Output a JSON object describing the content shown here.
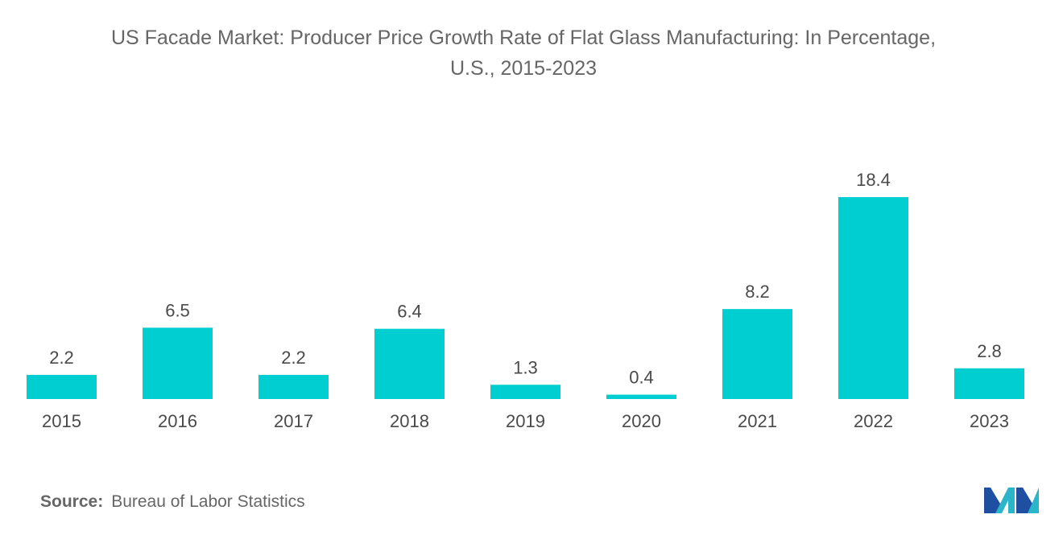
{
  "chart_data": {
    "type": "bar",
    "title_line1": "US Facade Market: Producer Price Growth Rate of Flat Glass Manufacturing: In Percentage,",
    "title_line2": "U.S., 2015-2023",
    "categories": [
      "2015",
      "2016",
      "2017",
      "2018",
      "2019",
      "2020",
      "2021",
      "2022",
      "2023"
    ],
    "values": [
      2.2,
      6.5,
      2.2,
      6.4,
      1.3,
      0.4,
      8.2,
      18.4,
      2.8
    ],
    "value_labels": [
      "2.2",
      "6.5",
      "2.2",
      "6.4",
      "1.3",
      "0.4",
      "8.2",
      "18.4",
      "2.8"
    ],
    "xlabel": "",
    "ylabel": "",
    "ylim": [
      0,
      18.4
    ],
    "grid": false,
    "bar_color": "#00ced1"
  },
  "source": {
    "label": "Source:",
    "text": "Bureau of Labor Statistics"
  },
  "logo": {
    "icon": "mordor-intelligence-logo",
    "colors": [
      "#1e4fa0",
      "#2bb5c8"
    ]
  }
}
